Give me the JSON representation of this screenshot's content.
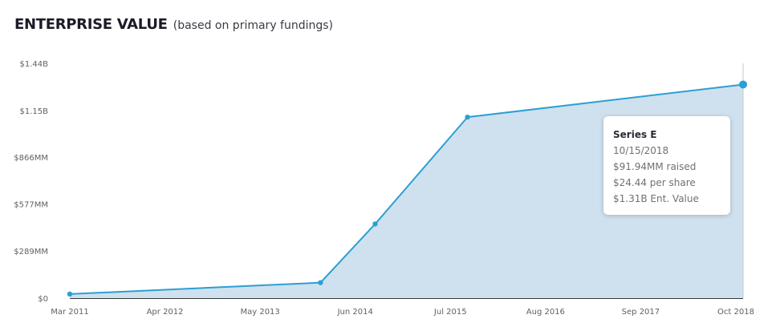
{
  "title": {
    "main": "ENTERPRISE VALUE",
    "subtitle": "(based on primary fundings)"
  },
  "chart_data": {
    "type": "area",
    "x_ticks": [
      "Mar 2011",
      "Apr 2012",
      "May 2013",
      "Jun 2014",
      "Jul 2015",
      "Aug 2016",
      "Sep 2017",
      "Oct 2018"
    ],
    "y_ticks": [
      "$0",
      "$289MM",
      "$577MM",
      "$866MM",
      "$1.15B",
      "$1.44B"
    ],
    "y_tick_values": [
      0,
      289,
      577,
      866,
      1150,
      1440
    ],
    "ylim": [
      0,
      1440
    ],
    "y_unit": "MM",
    "x_range": [
      "2011-03-01",
      "2018-10-15"
    ],
    "series": [
      {
        "points": [
          {
            "x": "2011-03-01",
            "y": 25
          },
          {
            "x": "2014-01-01",
            "y": 95
          },
          {
            "x": "2014-08-15",
            "y": 455
          },
          {
            "x": "2015-09-01",
            "y": 1110
          },
          {
            "x": "2018-10-15",
            "y": 1310
          }
        ]
      }
    ],
    "grid": false,
    "legend": "none",
    "colors": {
      "line": "#2b9fd4",
      "fill": "#cfe1ee",
      "axis": "#3a3a3a",
      "cursor": "#c3c8cc"
    },
    "tooltip": {
      "title": "Series E",
      "date": "10/15/2018",
      "raised": "$91.94MM raised",
      "per_share": "$24.44 per share",
      "ent_value": "$1.31B Ent. Value"
    }
  }
}
